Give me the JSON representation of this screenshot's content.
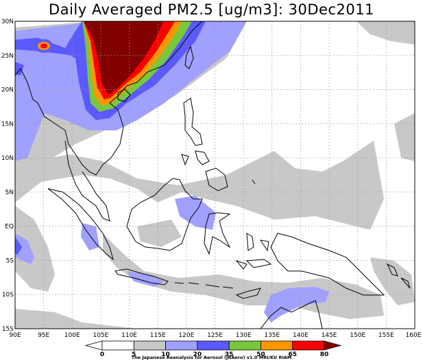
{
  "title": "Daily Averaged PM2.5 [ug/m3]: 30Dec2011",
  "map": {
    "lon_range": [
      90,
      160
    ],
    "lat_range": [
      -15,
      30
    ],
    "lon_ticks": [
      "90E",
      "95E",
      "100E",
      "105E",
      "110E",
      "115E",
      "120E",
      "125E",
      "130E",
      "135E",
      "140E",
      "145E",
      "150E",
      "155E",
      "160E"
    ],
    "lat_ticks": [
      "30N",
      "25N",
      "20N",
      "15N",
      "10N",
      "5N",
      "EQ",
      "5S",
      "10S",
      "15S"
    ],
    "gridlines": true
  },
  "colorbar": {
    "levels": [
      "0",
      "5",
      "10",
      "20",
      "35",
      "50",
      "65",
      "80"
    ],
    "colors": [
      "#ffffff",
      "#ffffff",
      "#c8c8c8",
      "#a0a0ff",
      "#5a5aff",
      "#78c83c",
      "#ff9600",
      "#ff0000",
      "#820000"
    ]
  },
  "credit": "The Japanese Reanalysis for Aerosol (JRAero) v1.0 MRI/KU RIAM"
}
